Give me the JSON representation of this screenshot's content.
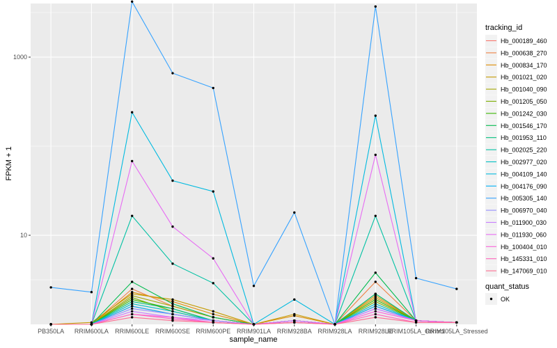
{
  "chart_data": {
    "type": "line",
    "xlabel": "sample_name",
    "ylabel": "FPKM + 1",
    "y_scale": "log10",
    "ylim": [
      1.0,
      4000
    ],
    "grid": true,
    "panel_color": "#ebebeb",
    "legend_placement": "right",
    "categories": [
      "PB350LA",
      "RRIM600LA",
      "RRIM600LE",
      "RRIM600SE",
      "RRIM600PE",
      "RRIM901LA",
      "RRIM928BA",
      "RRIM928LA",
      "RRIM928LE",
      "RRIM105LA_Control",
      "RRIM105LA_Stressed"
    ],
    "y_ticks": [
      {
        "value": 10,
        "label": "10"
      },
      {
        "value": 1000,
        "label": "1000"
      }
    ],
    "point_color": "#000000",
    "series": [
      {
        "name": "Hb_000189_460",
        "color": "#F8766D",
        "values": [
          1,
          1,
          1.6,
          1.3,
          1.1,
          1,
          1.1,
          1,
          1.6,
          1.1,
          1.05
        ]
      },
      {
        "name": "Hb_000638_270",
        "color": "#EE8042",
        "values": [
          1,
          1,
          2.5,
          1.6,
          1.2,
          1,
          1.1,
          1,
          3.0,
          1.1,
          1.05
        ]
      },
      {
        "name": "Hb_000834_170",
        "color": "#DE8C00",
        "values": [
          1,
          1,
          2.3,
          1.8,
          1.3,
          1,
          1.25,
          1,
          2.1,
          1.1,
          1.05
        ]
      },
      {
        "name": "Hb_001021_020",
        "color": "#C49A00",
        "values": [
          1,
          1.05,
          2.2,
          1.9,
          1.4,
          1,
          1.3,
          1,
          2.0,
          1.1,
          1.05
        ]
      },
      {
        "name": "Hb_001040_090",
        "color": "#A3A500",
        "values": [
          1,
          1,
          2.1,
          1.6,
          1.2,
          1,
          1.1,
          1,
          2.2,
          1.1,
          1.05
        ]
      },
      {
        "name": "Hb_001205_050",
        "color": "#7CAE00",
        "values": [
          1,
          1,
          2.0,
          1.4,
          1.1,
          1,
          1.1,
          1,
          1.8,
          1.1,
          1.05
        ]
      },
      {
        "name": "Hb_001242_030",
        "color": "#39B600",
        "values": [
          1,
          1,
          1.9,
          1.5,
          1.1,
          1,
          1.1,
          1,
          1.9,
          1.1,
          1.05
        ]
      },
      {
        "name": "Hb_001546_170",
        "color": "#00BB4E",
        "values": [
          1,
          1,
          3.0,
          1.7,
          1.2,
          1,
          1.1,
          1,
          3.8,
          1.1,
          1.05
        ]
      },
      {
        "name": "Hb_001953_110",
        "color": "#00BF7D",
        "values": [
          1,
          1,
          1.8,
          1.5,
          1.1,
          1,
          1.1,
          1,
          2.2,
          1.1,
          1.05
        ]
      },
      {
        "name": "Hb_002025_220",
        "color": "#00C1A3",
        "values": [
          1,
          1,
          16.5,
          4.8,
          2.9,
          1,
          1.1,
          1,
          16.5,
          1.1,
          1.05
        ]
      },
      {
        "name": "Hb_002977_020",
        "color": "#00BFC4",
        "values": [
          1,
          1,
          1.7,
          1.4,
          1.1,
          1,
          1.1,
          1,
          1.7,
          1.1,
          1.05
        ]
      },
      {
        "name": "Hb_004109_140",
        "color": "#00BAE0",
        "values": [
          1,
          1,
          240,
          41,
          31,
          1,
          1.9,
          1,
          220,
          1.1,
          1.05
        ]
      },
      {
        "name": "Hb_004176_090",
        "color": "#00B0F6",
        "values": [
          1,
          1,
          1.6,
          1.3,
          1.1,
          1,
          1.1,
          1,
          1.6,
          1.1,
          1.05
        ]
      },
      {
        "name": "Hb_005305_140",
        "color": "#35A2FF",
        "values": [
          2.6,
          2.3,
          4200,
          660,
          450,
          2.7,
          18,
          1,
          3700,
          3.3,
          2.5
        ]
      },
      {
        "name": "Hb_006970_040",
        "color": "#9590FF",
        "values": [
          1,
          1,
          1.5,
          1.3,
          1.1,
          1,
          1.1,
          1,
          1.5,
          1.1,
          1.05
        ]
      },
      {
        "name": "Hb_011900_030",
        "color": "#C77CFF",
        "values": [
          1,
          1,
          1.4,
          1.2,
          1.1,
          1,
          1.1,
          1,
          1.5,
          1.1,
          1.05
        ]
      },
      {
        "name": "Hb_011930_060",
        "color": "#E76BF3",
        "values": [
          1,
          1,
          68,
          12.5,
          5.5,
          1,
          1.1,
          1,
          80,
          1.1,
          1.05
        ]
      },
      {
        "name": "Hb_100404_010",
        "color": "#FA62DB",
        "values": [
          1,
          1,
          1.3,
          1.2,
          1.05,
          1,
          1.05,
          1,
          1.4,
          1.1,
          1.05
        ]
      },
      {
        "name": "Hb_145331_010",
        "color": "#FF62BC",
        "values": [
          1,
          1,
          1.3,
          1.15,
          1.05,
          1,
          1.05,
          1,
          1.3,
          1.05,
          1.05
        ]
      },
      {
        "name": "Hb_147069_010",
        "color": "#FF6C91",
        "values": [
          1,
          1,
          1.2,
          1.1,
          1.05,
          1,
          1.05,
          1,
          1.2,
          1.05,
          1.05
        ]
      }
    ],
    "legend": {
      "title": "tracking_id"
    },
    "legend2": {
      "title": "quant_status",
      "entries": [
        "OK"
      ]
    }
  }
}
